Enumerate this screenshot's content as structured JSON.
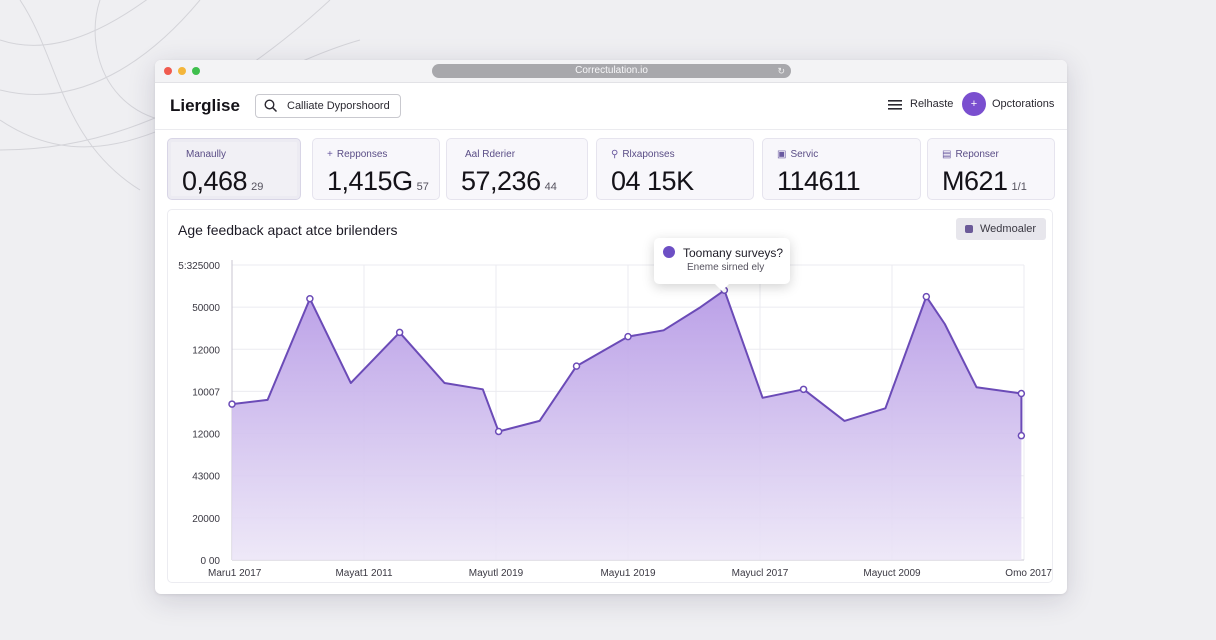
{
  "browser": {
    "url": "Correctulation.io"
  },
  "header": {
    "brand": "Lierglise",
    "search_text": "Calliate Dyporshoord",
    "menu_label": "Relhaste",
    "avatar_initial": "+",
    "account_label": "Opctorations"
  },
  "cards": [
    {
      "icon": "",
      "label": "Manaully",
      "value": "0,468",
      "sub": "29",
      "active": true
    },
    {
      "icon": "+",
      "label": "Repponses",
      "value": "1,415G",
      "sub": "57"
    },
    {
      "icon": "",
      "label": "Aal Rderier",
      "value": "57,236",
      "sub": "44"
    },
    {
      "icon": "⚲",
      "label": "Rlxaponses",
      "value": "04 15K",
      "sub": ""
    },
    {
      "icon": "▣",
      "label": "Servic",
      "value": "114611",
      "sub": ""
    },
    {
      "icon": "▤",
      "label": "Reponser",
      "value": "M621",
      "sub": "1/1"
    }
  ],
  "chart_panel": {
    "title": "Age feedback apact atce brilenders",
    "button_label": "Wedmoaler"
  },
  "tooltip": {
    "title": "Toomany surveys?",
    "subtitle": "Eneme sirned ely"
  },
  "colors": {
    "accent": "#7a4fcf",
    "line": "#6b4bb7",
    "area_top": "#b79be6",
    "area_bottom": "#ece6f7"
  },
  "chart_data": {
    "type": "area",
    "title": "Age feedback apact atce brilenders",
    "y_tick_labels": [
      "5:325000",
      "50000",
      "12000",
      "10007",
      "12000",
      "43000",
      "20000",
      "0 00"
    ],
    "x_tick_labels": [
      "Maru1 2017",
      "Mayat1 2011",
      "Mayutl 2019",
      "Mayu1 2019",
      "Mayucl 2017",
      "Mayuct 2009",
      "Omo 2017"
    ],
    "grid": true,
    "y_domain": [
      0,
      7
    ],
    "x_domain": [
      0,
      6
    ],
    "points": [
      [
        0,
        3.7
      ],
      [
        0.27,
        3.8
      ],
      [
        0.59,
        6.2
      ],
      [
        0.9,
        4.2
      ],
      [
        1.27,
        5.4
      ],
      [
        1.61,
        4.2
      ],
      [
        1.9,
        4.05
      ],
      [
        2.02,
        3.05
      ],
      [
        2.33,
        3.3
      ],
      [
        2.61,
        4.6
      ],
      [
        3.0,
        5.3
      ],
      [
        3.27,
        5.45
      ],
      [
        3.55,
        6.0
      ],
      [
        3.73,
        6.4
      ],
      [
        4.02,
        3.85
      ],
      [
        4.33,
        4.05
      ],
      [
        4.64,
        3.3
      ],
      [
        4.95,
        3.6
      ],
      [
        5.26,
        6.25
      ],
      [
        5.4,
        5.6
      ],
      [
        5.64,
        4.1
      ],
      [
        5.98,
        3.95
      ],
      [
        5.98,
        2.95
      ]
    ],
    "marked_points": [
      0,
      2,
      4,
      7,
      9,
      10,
      13,
      15,
      18,
      21,
      22
    ]
  }
}
